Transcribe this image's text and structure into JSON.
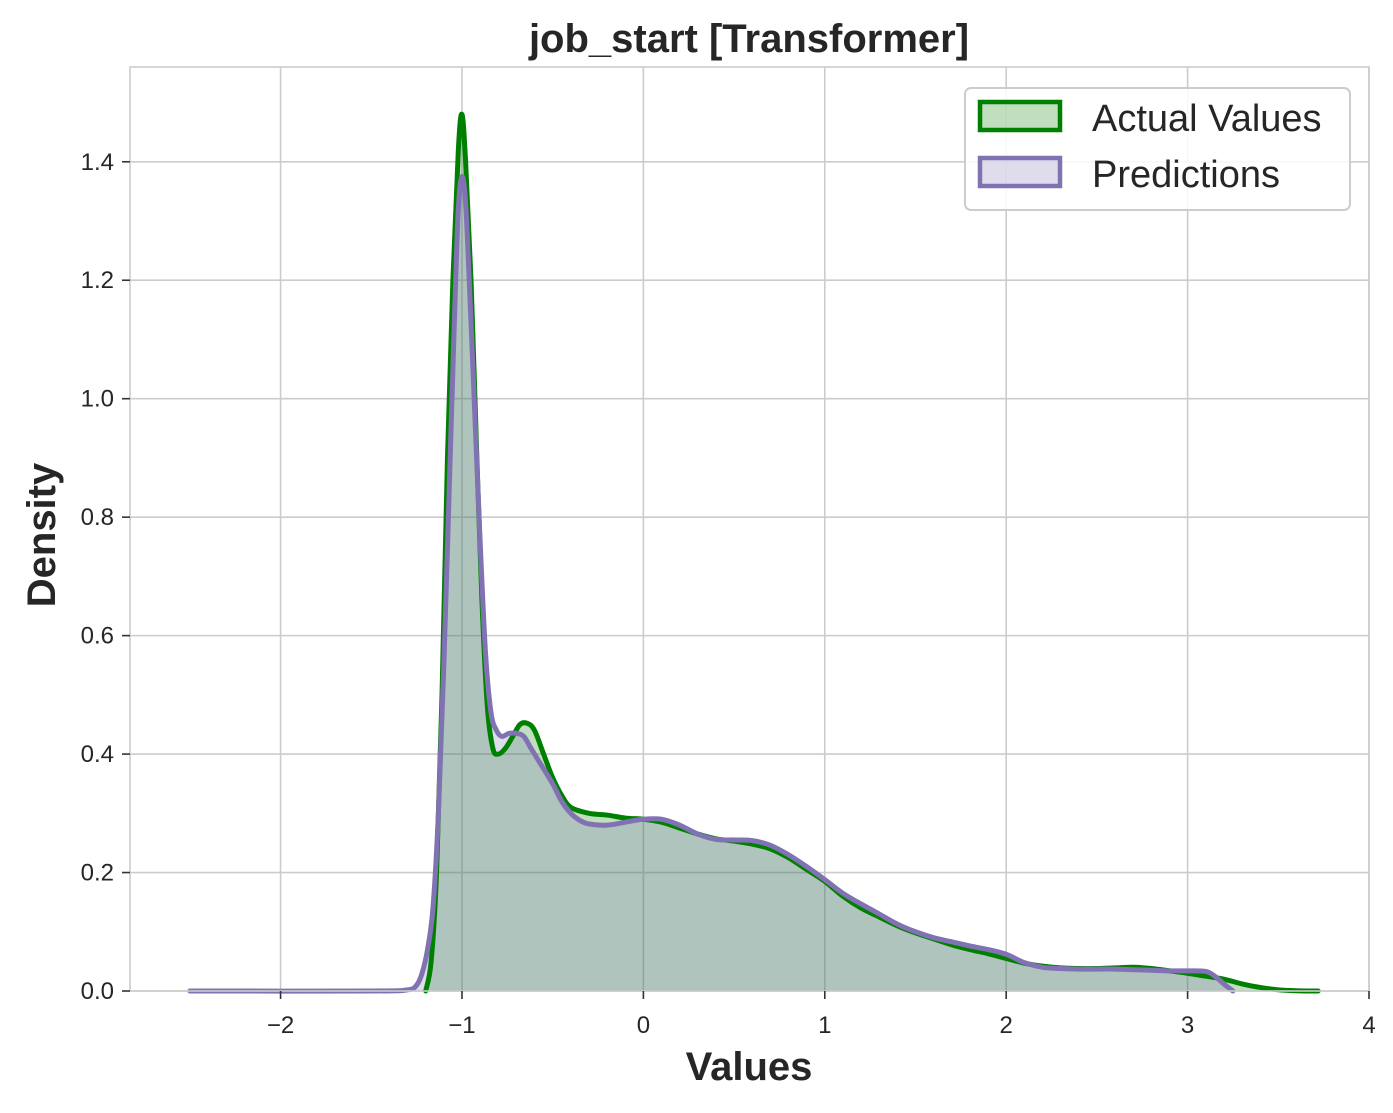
{
  "chart_data": {
    "type": "area",
    "title": "job_start [Transformer]",
    "xlabel": "Values",
    "ylabel": "Density",
    "xlim": [
      -2.83,
      4.0
    ],
    "ylim": [
      0,
      1.56
    ],
    "x_ticks": [
      -2,
      -1,
      0,
      1,
      2,
      3,
      4
    ],
    "x_tick_labels": [
      "−2",
      "−1",
      "0",
      "1",
      "2",
      "3",
      "4"
    ],
    "y_ticks": [
      0.0,
      0.2,
      0.4,
      0.6,
      0.8,
      1.0,
      1.2,
      1.4
    ],
    "y_tick_labels": [
      "0.0",
      "0.2",
      "0.4",
      "0.6",
      "0.8",
      "1.0",
      "1.2",
      "1.4"
    ],
    "grid": true,
    "legend_position": "top-right",
    "series": [
      {
        "name": "Actual Values",
        "color": "#008000",
        "fill": "#008000",
        "points": [
          [
            -1.2,
            0.0
          ],
          [
            -1.17,
            0.05
          ],
          [
            -1.14,
            0.2
          ],
          [
            -1.11,
            0.5
          ],
          [
            -1.08,
            0.9
          ],
          [
            -1.05,
            1.2
          ],
          [
            -1.02,
            1.42
          ],
          [
            -1.0,
            1.48
          ],
          [
            -0.98,
            1.4
          ],
          [
            -0.95,
            1.2
          ],
          [
            -0.92,
            0.92
          ],
          [
            -0.89,
            0.66
          ],
          [
            -0.86,
            0.48
          ],
          [
            -0.83,
            0.41
          ],
          [
            -0.8,
            0.4
          ],
          [
            -0.76,
            0.41
          ],
          [
            -0.72,
            0.43
          ],
          [
            -0.68,
            0.45
          ],
          [
            -0.64,
            0.452
          ],
          [
            -0.6,
            0.44
          ],
          [
            -0.55,
            0.4
          ],
          [
            -0.5,
            0.36
          ],
          [
            -0.45,
            0.33
          ],
          [
            -0.4,
            0.31
          ],
          [
            -0.3,
            0.3
          ],
          [
            -0.2,
            0.297
          ],
          [
            -0.1,
            0.292
          ],
          [
            0.0,
            0.29
          ],
          [
            0.1,
            0.285
          ],
          [
            0.2,
            0.275
          ],
          [
            0.3,
            0.265
          ],
          [
            0.4,
            0.257
          ],
          [
            0.5,
            0.253
          ],
          [
            0.6,
            0.248
          ],
          [
            0.7,
            0.24
          ],
          [
            0.8,
            0.225
          ],
          [
            0.9,
            0.205
          ],
          [
            1.0,
            0.185
          ],
          [
            1.1,
            0.16
          ],
          [
            1.2,
            0.14
          ],
          [
            1.3,
            0.125
          ],
          [
            1.4,
            0.11
          ],
          [
            1.5,
            0.098
          ],
          [
            1.6,
            0.088
          ],
          [
            1.7,
            0.078
          ],
          [
            1.8,
            0.07
          ],
          [
            1.9,
            0.063
          ],
          [
            2.0,
            0.055
          ],
          [
            2.1,
            0.047
          ],
          [
            2.2,
            0.042
          ],
          [
            2.3,
            0.039
          ],
          [
            2.4,
            0.038
          ],
          [
            2.5,
            0.038
          ],
          [
            2.6,
            0.039
          ],
          [
            2.7,
            0.04
          ],
          [
            2.8,
            0.038
          ],
          [
            2.9,
            0.034
          ],
          [
            3.0,
            0.03
          ],
          [
            3.1,
            0.025
          ],
          [
            3.2,
            0.02
          ],
          [
            3.3,
            0.012
          ],
          [
            3.4,
            0.006
          ],
          [
            3.5,
            0.002
          ],
          [
            3.6,
            0.0005
          ],
          [
            3.72,
            0.0
          ]
        ]
      },
      {
        "name": "Predictions",
        "color": "#8172B3",
        "fill": "#8172B3",
        "points": [
          [
            -2.5,
            0.0
          ],
          [
            -1.5,
            0.0
          ],
          [
            -1.3,
            0.002
          ],
          [
            -1.25,
            0.01
          ],
          [
            -1.22,
            0.03
          ],
          [
            -1.19,
            0.07
          ],
          [
            -1.16,
            0.14
          ],
          [
            -1.13,
            0.3
          ],
          [
            -1.1,
            0.55
          ],
          [
            -1.07,
            0.85
          ],
          [
            -1.04,
            1.15
          ],
          [
            -1.02,
            1.32
          ],
          [
            -1.0,
            1.375
          ],
          [
            -0.98,
            1.33
          ],
          [
            -0.96,
            1.2
          ],
          [
            -0.93,
            0.98
          ],
          [
            -0.9,
            0.76
          ],
          [
            -0.87,
            0.57
          ],
          [
            -0.84,
            0.47
          ],
          [
            -0.81,
            0.44
          ],
          [
            -0.78,
            0.43
          ],
          [
            -0.74,
            0.435
          ],
          [
            -0.7,
            0.435
          ],
          [
            -0.66,
            0.43
          ],
          [
            -0.62,
            0.41
          ],
          [
            -0.56,
            0.38
          ],
          [
            -0.5,
            0.35
          ],
          [
            -0.45,
            0.32
          ],
          [
            -0.4,
            0.3
          ],
          [
            -0.35,
            0.288
          ],
          [
            -0.3,
            0.282
          ],
          [
            -0.2,
            0.28
          ],
          [
            -0.1,
            0.285
          ],
          [
            0.0,
            0.29
          ],
          [
            0.1,
            0.29
          ],
          [
            0.2,
            0.28
          ],
          [
            0.3,
            0.265
          ],
          [
            0.4,
            0.256
          ],
          [
            0.5,
            0.255
          ],
          [
            0.6,
            0.254
          ],
          [
            0.7,
            0.246
          ],
          [
            0.8,
            0.23
          ],
          [
            0.9,
            0.21
          ],
          [
            1.0,
            0.188
          ],
          [
            1.1,
            0.165
          ],
          [
            1.2,
            0.147
          ],
          [
            1.3,
            0.13
          ],
          [
            1.4,
            0.113
          ],
          [
            1.5,
            0.1
          ],
          [
            1.6,
            0.09
          ],
          [
            1.7,
            0.083
          ],
          [
            1.8,
            0.076
          ],
          [
            1.9,
            0.07
          ],
          [
            2.0,
            0.062
          ],
          [
            2.1,
            0.048
          ],
          [
            2.2,
            0.04
          ],
          [
            2.3,
            0.038
          ],
          [
            2.4,
            0.037
          ],
          [
            2.5,
            0.037
          ],
          [
            2.6,
            0.037
          ],
          [
            2.7,
            0.036
          ],
          [
            2.8,
            0.035
          ],
          [
            2.9,
            0.034
          ],
          [
            3.0,
            0.034
          ],
          [
            3.1,
            0.033
          ],
          [
            3.15,
            0.025
          ],
          [
            3.2,
            0.012
          ],
          [
            3.25,
            0.0
          ]
        ]
      }
    ]
  }
}
